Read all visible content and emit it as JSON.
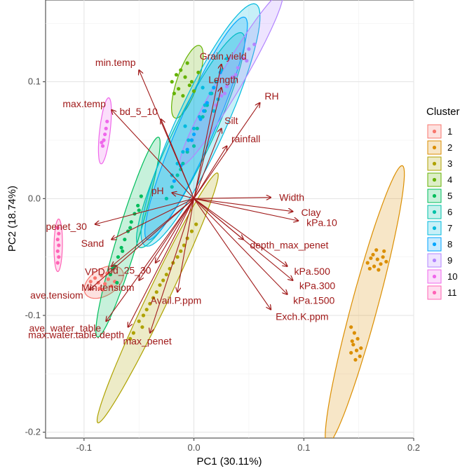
{
  "chart_data": {
    "type": "scatter",
    "title": "",
    "xlabel": "PC1 (30.11%)",
    "ylabel": "PC2 (18.74%)",
    "xlim": [
      -0.135,
      0.2
    ],
    "ylim": [
      -0.205,
      0.17
    ],
    "x_ticks": [
      -0.1,
      0.0,
      0.1,
      0.2
    ],
    "x_tick_labels": [
      "-0.1",
      "0.0",
      "0.1",
      "0.2"
    ],
    "y_ticks": [
      -0.2,
      -0.1,
      0.0,
      0.1
    ],
    "y_tick_labels": [
      "-0.2",
      "-0.1",
      "0.0",
      "0.1"
    ],
    "grid": true,
    "legend_position": "right",
    "legend_title": "Cluster",
    "arrow_color": "#a01a1a",
    "series": [
      {
        "name": "1",
        "color": "#F8766D",
        "ellipse": {
          "cx": -0.082,
          "cy": -0.0715,
          "rx": 0.0195,
          "ry": 0.0115,
          "angle": 30
        },
        "points": [
          [
            -0.094,
            -0.071
          ],
          [
            -0.09,
            -0.068
          ],
          [
            -0.087,
            -0.072
          ],
          [
            -0.084,
            -0.066
          ],
          [
            -0.081,
            -0.073
          ],
          [
            -0.078,
            -0.069
          ],
          [
            -0.075,
            -0.075
          ],
          [
            -0.072,
            -0.071
          ],
          [
            -0.086,
            -0.077
          ],
          [
            -0.079,
            -0.064
          ],
          [
            -0.083,
            -0.078
          ]
        ]
      },
      {
        "name": "2",
        "color": "#DB8E00",
        "ellipse": {
          "cx": 0.1555,
          "cy": -0.091,
          "rx": 0.124,
          "ry": 0.0118,
          "angle": 74
        },
        "points": [
          [
            0.158,
            -0.055
          ],
          [
            0.161,
            -0.051
          ],
          [
            0.164,
            -0.058
          ],
          [
            0.167,
            -0.052
          ],
          [
            0.17,
            -0.056
          ],
          [
            0.163,
            -0.048
          ],
          [
            0.172,
            -0.05
          ],
          [
            0.175,
            -0.054
          ],
          [
            0.168,
            -0.061
          ],
          [
            0.16,
            -0.06
          ],
          [
            0.173,
            -0.045
          ],
          [
            0.166,
            -0.044
          ],
          [
            0.143,
            -0.11
          ],
          [
            0.146,
            -0.115
          ],
          [
            0.149,
            -0.12
          ],
          [
            0.145,
            -0.125
          ],
          [
            0.148,
            -0.13
          ],
          [
            0.151,
            -0.135
          ],
          [
            0.147,
            -0.138
          ],
          [
            0.144,
            -0.122
          ],
          [
            0.152,
            -0.128
          ],
          [
            0.143,
            -0.132
          ]
        ]
      },
      {
        "name": "3",
        "color": "#AEA200",
        "ellipse": {
          "cx": -0.033,
          "cy": -0.085,
          "rx": 0.12,
          "ry": 0.0095,
          "angle": 63
        },
        "points": [
          [
            -0.05,
            -0.105
          ],
          [
            -0.046,
            -0.1
          ],
          [
            -0.043,
            -0.095
          ],
          [
            -0.04,
            -0.09
          ],
          [
            -0.037,
            -0.085
          ],
          [
            -0.034,
            -0.08
          ],
          [
            -0.031,
            -0.074
          ],
          [
            -0.028,
            -0.07
          ],
          [
            -0.025,
            -0.065
          ],
          [
            -0.022,
            -0.06
          ],
          [
            -0.019,
            -0.055
          ],
          [
            -0.015,
            -0.05
          ],
          [
            -0.012,
            -0.045
          ],
          [
            -0.009,
            -0.04
          ],
          [
            -0.006,
            -0.034
          ],
          [
            -0.002,
            -0.028
          ],
          [
            0.002,
            -0.022
          ],
          [
            -0.055,
            -0.115
          ],
          [
            -0.058,
            -0.12
          ],
          [
            -0.047,
            -0.11
          ]
        ]
      },
      {
        "name": "4",
        "color": "#64B200",
        "ellipse": {
          "cx": -0.006,
          "cy": 0.1,
          "rx": 0.033,
          "ry": 0.0095,
          "angle": 70
        },
        "points": [
          [
            -0.02,
            0.1
          ],
          [
            -0.016,
            0.106
          ],
          [
            -0.012,
            0.11
          ],
          [
            -0.008,
            0.104
          ],
          [
            -0.004,
            0.097
          ],
          [
            0.0,
            0.092
          ],
          [
            -0.01,
            0.088
          ],
          [
            -0.014,
            0.094
          ],
          [
            -0.006,
            0.116
          ],
          [
            -0.002,
            0.1
          ],
          [
            0.004,
            0.108
          ],
          [
            -0.018,
            0.09
          ]
        ]
      },
      {
        "name": "5",
        "color": "#00BD5C",
        "ellipse": {
          "cx": -0.06,
          "cy": -0.033,
          "rx": 0.09,
          "ry": 0.0095,
          "angle": 72
        },
        "points": [
          [
            -0.076,
            -0.065
          ],
          [
            -0.072,
            -0.058
          ],
          [
            -0.069,
            -0.05
          ],
          [
            -0.066,
            -0.042
          ],
          [
            -0.063,
            -0.035
          ],
          [
            -0.06,
            -0.028
          ],
          [
            -0.057,
            -0.02
          ],
          [
            -0.054,
            -0.013
          ],
          [
            -0.051,
            -0.006
          ],
          [
            -0.048,
            0.002
          ],
          [
            -0.074,
            -0.06
          ],
          [
            -0.065,
            -0.045
          ],
          [
            -0.058,
            -0.025
          ],
          [
            -0.07,
            -0.072
          ],
          [
            -0.05,
            -0.01
          ]
        ]
      },
      {
        "name": "6",
        "color": "#00C1A7",
        "ellipse": {
          "cx": -0.003,
          "cy": 0.05,
          "rx": 0.103,
          "ry": 0.0175,
          "angle": 63
        },
        "points": [
          [
            -0.02,
            0.01
          ],
          [
            -0.015,
            0.02
          ],
          [
            -0.01,
            0.03
          ],
          [
            -0.006,
            0.04
          ],
          [
            -0.002,
            0.05
          ],
          [
            0.003,
            0.06
          ],
          [
            0.008,
            0.07
          ],
          [
            0.012,
            0.08
          ],
          [
            0.016,
            0.09
          ],
          [
            -0.025,
            0.0
          ],
          [
            0.0,
            0.045
          ],
          [
            0.01,
            0.075
          ],
          [
            -0.012,
            0.025
          ]
        ]
      },
      {
        "name": "7",
        "color": "#00BADE",
        "ellipse": {
          "cx": 0.006,
          "cy": 0.063,
          "rx": 0.115,
          "ry": 0.022,
          "angle": 64
        },
        "points": [
          [
            -0.02,
            0.02
          ],
          [
            -0.015,
            0.03
          ],
          [
            -0.01,
            0.04
          ],
          [
            -0.005,
            0.05
          ],
          [
            0.0,
            0.06
          ],
          [
            0.005,
            0.07
          ],
          [
            0.01,
            0.08
          ],
          [
            0.015,
            0.09
          ],
          [
            0.02,
            0.1
          ],
          [
            0.025,
            0.11
          ],
          [
            0.03,
            0.12
          ],
          [
            0.008,
            0.095
          ],
          [
            0.018,
            0.075
          ],
          [
            -0.008,
            0.062
          ],
          [
            0.022,
            0.085
          ]
        ]
      },
      {
        "name": "8",
        "color": "#00A6FF",
        "ellipse": {
          "cx": 0.002,
          "cy": 0.06,
          "rx": 0.105,
          "ry": 0.016,
          "angle": 65
        },
        "points": [
          [
            -0.018,
            0.015
          ],
          [
            -0.012,
            0.028
          ],
          [
            -0.006,
            0.042
          ],
          [
            0.0,
            0.055
          ],
          [
            0.006,
            0.068
          ],
          [
            0.012,
            0.082
          ],
          [
            0.018,
            0.095
          ],
          [
            0.024,
            0.108
          ],
          [
            -0.002,
            0.05
          ],
          [
            0.009,
            0.075
          ]
        ]
      },
      {
        "name": "9",
        "color": "#B385FF",
        "ellipse": {
          "cx": 0.034,
          "cy": 0.102,
          "rx": 0.087,
          "ry": 0.0105,
          "angle": 58
        },
        "points": [
          [
            0.02,
            0.08
          ],
          [
            0.025,
            0.088
          ],
          [
            0.03,
            0.096
          ],
          [
            0.035,
            0.104
          ],
          [
            0.04,
            0.112
          ],
          [
            0.045,
            0.12
          ],
          [
            0.05,
            0.128
          ],
          [
            0.055,
            0.132
          ],
          [
            0.048,
            0.118
          ],
          [
            0.038,
            0.106
          ],
          [
            0.028,
            0.09
          ]
        ]
      },
      {
        "name": "10",
        "color": "#EF67EB",
        "ellipse": {
          "cx": -0.081,
          "cy": 0.058,
          "rx": 0.0285,
          "ry": 0.0048,
          "angle": 83
        },
        "points": [
          [
            -0.083,
            0.045
          ],
          [
            -0.082,
            0.05
          ],
          [
            -0.081,
            0.055
          ],
          [
            -0.08,
            0.06
          ],
          [
            -0.079,
            0.066
          ],
          [
            -0.084,
            0.048
          ]
        ]
      },
      {
        "name": "11",
        "color": "#FF63B6",
        "ellipse": {
          "cx": -0.1235,
          "cy": -0.04,
          "rx": 0.0225,
          "ry": 0.0038,
          "angle": 89
        },
        "points": [
          [
            -0.124,
            -0.025
          ],
          [
            -0.123,
            -0.03
          ],
          [
            -0.124,
            -0.035
          ],
          [
            -0.123,
            -0.04
          ],
          [
            -0.124,
            -0.045
          ],
          [
            -0.123,
            -0.05
          ],
          [
            -0.124,
            -0.055
          ]
        ]
      }
    ],
    "arrows": [
      {
        "label": "min.temp",
        "x": -0.05,
        "y": 0.11
      },
      {
        "label": "max.temp",
        "x": -0.075,
        "y": 0.076
      },
      {
        "label": "bd_5_10",
        "x": -0.03,
        "y": 0.068
      },
      {
        "label": "Grain.yield",
        "x": 0.025,
        "y": 0.115
      },
      {
        "label": "Length",
        "x": 0.025,
        "y": 0.095
      },
      {
        "label": "RH",
        "x": 0.06,
        "y": 0.082
      },
      {
        "label": "Silt",
        "x": 0.025,
        "y": 0.06
      },
      {
        "label": "rainfall",
        "x": 0.03,
        "y": 0.045
      },
      {
        "label": "Width",
        "x": 0.07,
        "y": 0.001
      },
      {
        "label": "Clay",
        "x": 0.09,
        "y": -0.011
      },
      {
        "label": "kPa.10",
        "x": 0.095,
        "y": -0.019
      },
      {
        "label": "pH",
        "x": -0.02,
        "y": 0.005
      },
      {
        "label": "penet_30",
        "x": -0.09,
        "y": -0.022
      },
      {
        "label": "Sand",
        "x": -0.075,
        "y": -0.035
      },
      {
        "label": "depth_max_penet",
        "x": 0.045,
        "y": -0.035
      },
      {
        "label": "kPa.500",
        "x": 0.085,
        "y": -0.058
      },
      {
        "label": "kPa.300",
        "x": 0.09,
        "y": -0.07
      },
      {
        "label": "kPa.1500",
        "x": 0.085,
        "y": -0.082
      },
      {
        "label": "Exch.K.ppm",
        "x": 0.07,
        "y": -0.095
      },
      {
        "label": "VPD",
        "x": -0.075,
        "y": -0.058
      },
      {
        "label": "bd_25_30",
        "x": -0.035,
        "y": -0.055
      },
      {
        "label": "Avail.P.ppm",
        "x": -0.015,
        "y": -0.08
      },
      {
        "label": "ave.tensiom",
        "x": -0.095,
        "y": -0.078
      },
      {
        "label": "Min.tensiom",
        "x": -0.05,
        "y": -0.07
      },
      {
        "label": "ave_water_table",
        "x": -0.08,
        "y": -0.105
      },
      {
        "label": "max.water.table.depth",
        "x": -0.06,
        "y": -0.11
      },
      {
        "label": "max_penet",
        "x": -0.04,
        "y": -0.115
      }
    ]
  }
}
